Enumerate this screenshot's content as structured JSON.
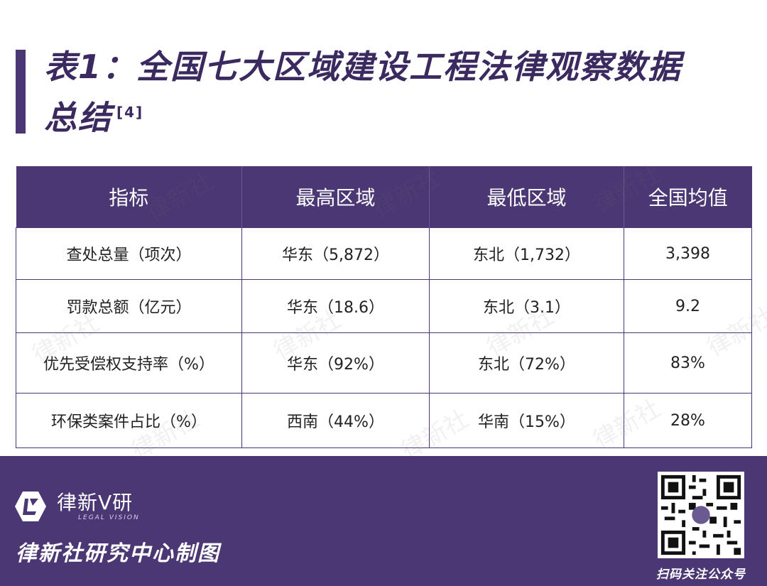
{
  "title": {
    "main": "表1：全国七大区域建设工程法律观察数据总结",
    "ref": "[4]"
  },
  "table": {
    "headers": [
      "指标",
      "最高区域",
      "最低区域",
      "全国均值"
    ],
    "rows": [
      [
        "查处总量（项次）",
        "华东（5,872）",
        "东北（1,732）",
        "3,398"
      ],
      [
        "罚款总额（亿元）",
        "华东（18.6）",
        "东北（3.1）",
        "9.2"
      ],
      [
        "优先受偿权支持率（%）",
        "华东（92%）",
        "东北（72%）",
        "83%"
      ],
      [
        "环保类案件占比（%）",
        "西南（44%）",
        "华南（15%）",
        "28%"
      ]
    ]
  },
  "watermark": "律新社",
  "footer": {
    "brand": "律新V研",
    "brand_sub": "LEGAL VISION",
    "credit": "律新社研究中心制图",
    "qr_caption": "扫码关注公众号"
  },
  "colors": {
    "accent": "#4a3773"
  },
  "icons": {
    "logo": "legal-vision-logo-icon",
    "qr": "qr-code-icon"
  }
}
